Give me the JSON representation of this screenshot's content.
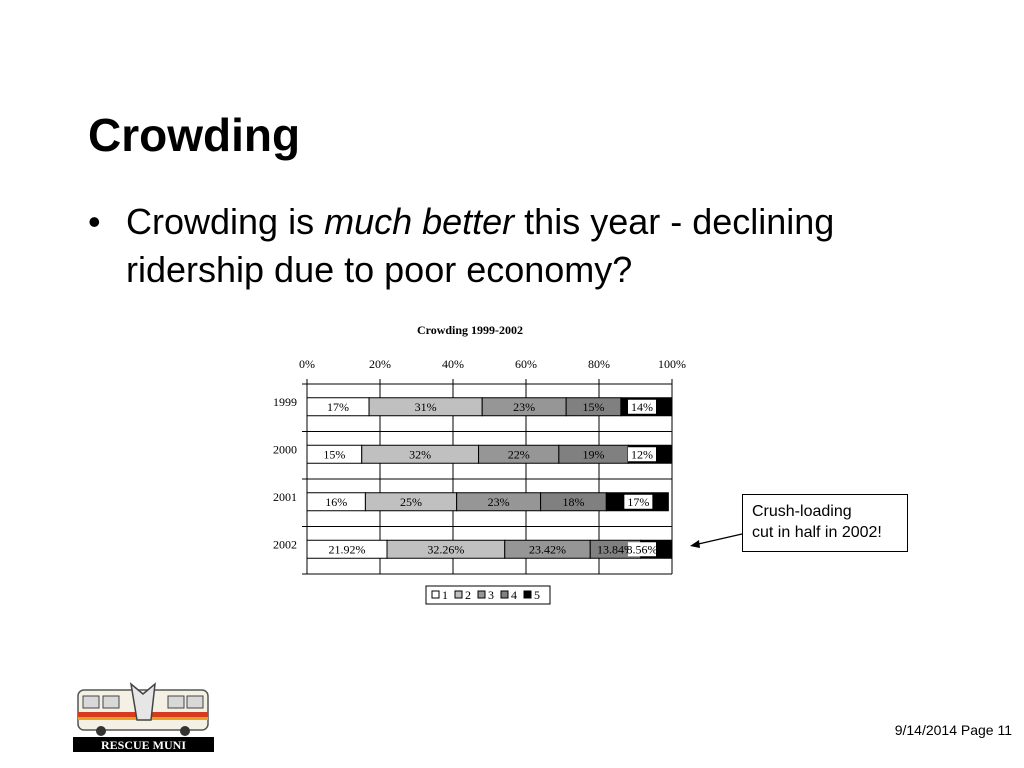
{
  "slide": {
    "title": "Crowding",
    "bullet_marker": "•",
    "bullet_pre": "Crowding is ",
    "bullet_em": "much better",
    "bullet_post": " this year - declining ridership due to poor economy?",
    "callout_line1": "Crush-loading",
    "callout_line2": "cut in half in 2002!",
    "logo_text": "RESCUE MUNI",
    "footer": "9/14/2014 Page 11"
  },
  "colors": {
    "series": [
      "#ffffff",
      "#c0c0c0",
      "#969696",
      "#808080",
      "#000000"
    ]
  },
  "chart_data": {
    "type": "bar",
    "stacked": true,
    "percent_stacked": true,
    "orientation": "horizontal",
    "title": "Crowding 1999-2002",
    "categories": [
      "1999",
      "2000",
      "2001",
      "2002"
    ],
    "xlim": [
      0,
      100
    ],
    "x_ticks": [
      "0%",
      "20%",
      "40%",
      "60%",
      "80%",
      "100%"
    ],
    "grid": true,
    "legend_position": "bottom",
    "series": [
      {
        "name": "1",
        "values": [
          17,
          15,
          16,
          21.92
        ],
        "labels": [
          "17%",
          "15%",
          "16%",
          "21.92%"
        ]
      },
      {
        "name": "2",
        "values": [
          31,
          32,
          25,
          32.26
        ],
        "labels": [
          "31%",
          "32%",
          "25%",
          "32.26%"
        ]
      },
      {
        "name": "3",
        "values": [
          23,
          22,
          23,
          23.42
        ],
        "labels": [
          "23%",
          "22%",
          "23%",
          "23.42%"
        ]
      },
      {
        "name": "4",
        "values": [
          15,
          19,
          18,
          13.84
        ],
        "labels": [
          "15%",
          "19%",
          "18%",
          "13.84%"
        ]
      },
      {
        "name": "5",
        "values": [
          14,
          12,
          17,
          8.56
        ],
        "labels": [
          "14%",
          "12%",
          "17%",
          "8.56%"
        ]
      }
    ]
  }
}
